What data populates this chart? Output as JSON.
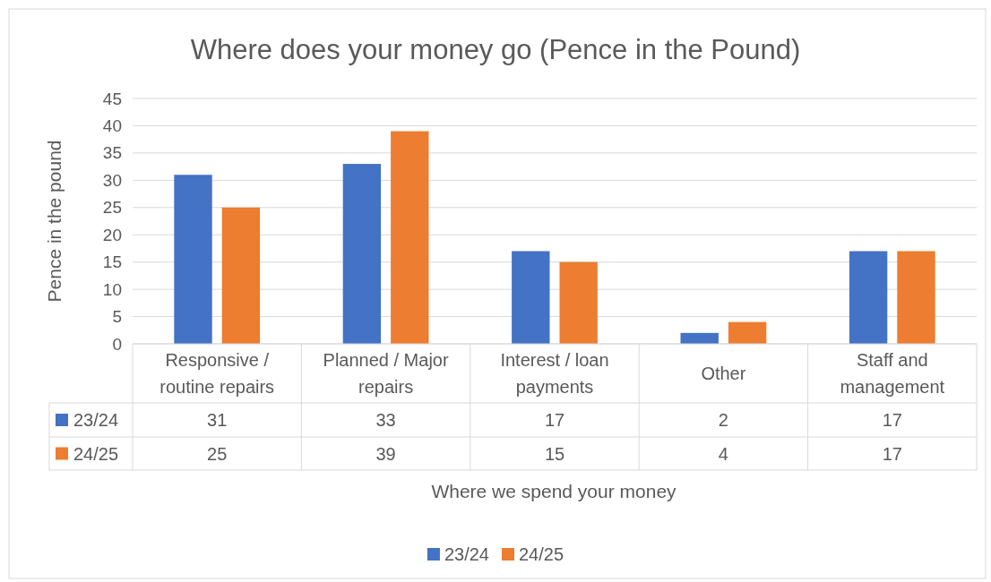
{
  "chart_data": {
    "type": "bar",
    "title": "Where does your money go (Pence in the Pound)",
    "xlabel": "Where we spend your money",
    "ylabel": "Pence in the pound",
    "categories": [
      "Responsive / routine repairs",
      "Planned / Major repairs",
      "Interest / loan payments",
      "Other",
      "Staff and management"
    ],
    "series": [
      {
        "name": "23/24",
        "color": "#4472c4",
        "values": [
          31,
          33,
          17,
          2,
          17
        ]
      },
      {
        "name": "24/25",
        "color": "#ed7d31",
        "values": [
          25,
          39,
          15,
          4,
          17
        ]
      }
    ],
    "ylim": [
      0,
      45
    ],
    "yticks": [
      0,
      5,
      10,
      15,
      20,
      25,
      30,
      35,
      40,
      45
    ],
    "grid": "y",
    "legend": "bottom",
    "data_labels": true
  }
}
